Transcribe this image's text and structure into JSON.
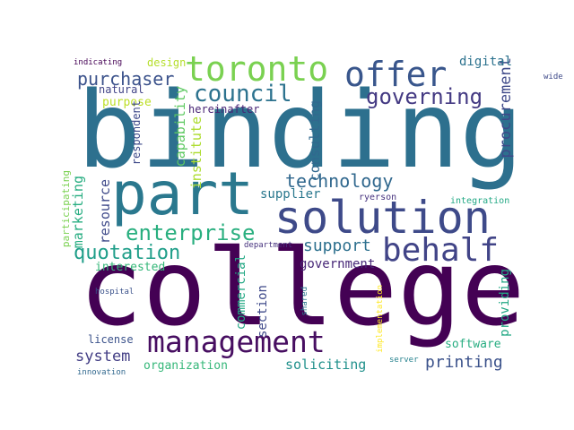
{
  "words": [
    {
      "text": "binding",
      "color": "#2d708e"
    },
    {
      "text": "college",
      "color": "#440154"
    },
    {
      "text": "part",
      "color": "#2a788e"
    },
    {
      "text": "solution",
      "color": "#3e4a89"
    },
    {
      "text": "toronto",
      "color": "#7ad151"
    },
    {
      "text": "offer",
      "color": "#39568c"
    },
    {
      "text": "management",
      "color": "#470e61"
    },
    {
      "text": "behalf",
      "color": "#414487"
    },
    {
      "text": "council",
      "color": "#2c728e"
    },
    {
      "text": "governing",
      "color": "#443a83"
    },
    {
      "text": "purchaser",
      "color": "#3b528b"
    },
    {
      "text": "enterprise",
      "color": "#29af7f"
    },
    {
      "text": "quotation",
      "color": "#1f9e89"
    },
    {
      "text": "technology",
      "color": "#31688e"
    },
    {
      "text": "support",
      "color": "#2d708e"
    },
    {
      "text": "printing",
      "color": "#3b528b"
    },
    {
      "text": "system",
      "color": "#433e85"
    },
    {
      "text": "soliciting",
      "color": "#21918c"
    },
    {
      "text": "procurement",
      "color": "#3e4989"
    },
    {
      "text": "consulting",
      "color": "#31688e"
    },
    {
      "text": "capability",
      "color": "#5ec962"
    },
    {
      "text": "institute",
      "color": "#addc30"
    },
    {
      "text": "resource",
      "color": "#3e4989"
    },
    {
      "text": "marketing",
      "color": "#27ad81"
    },
    {
      "text": "supplier",
      "color": "#2a788e"
    },
    {
      "text": "government",
      "color": "#482878"
    },
    {
      "text": "interested",
      "color": "#35b779"
    },
    {
      "text": "software",
      "color": "#27ad81"
    },
    {
      "text": "organization",
      "color": "#35b779"
    },
    {
      "text": "providing",
      "color": "#22a884"
    },
    {
      "text": "commercial",
      "color": "#22a884"
    },
    {
      "text": "section",
      "color": "#3e4989"
    },
    {
      "text": "license",
      "color": "#3b528b"
    },
    {
      "text": "purpose",
      "color": "#bddf26"
    },
    {
      "text": "natural",
      "color": "#414487"
    },
    {
      "text": "digital",
      "color": "#2c728e"
    },
    {
      "text": "design",
      "color": "#b5de2b"
    },
    {
      "text": "hereinafter",
      "color": "#482475"
    },
    {
      "text": "respondent",
      "color": "#3e4989"
    },
    {
      "text": "participating",
      "color": "#7ad151"
    },
    {
      "text": "department",
      "color": "#46327e"
    },
    {
      "text": "ryerson",
      "color": "#46327e"
    },
    {
      "text": "integration",
      "color": "#22a884"
    },
    {
      "text": "hospital",
      "color": "#3b528b"
    },
    {
      "text": "shared",
      "color": "#2a788e"
    },
    {
      "text": "implementation",
      "color": "#fde725"
    },
    {
      "text": "server",
      "color": "#26828e"
    },
    {
      "text": "innovation",
      "color": "#31688e"
    },
    {
      "text": "indicating",
      "color": "#440154"
    },
    {
      "text": "wide",
      "color": "#3e4989"
    }
  ]
}
